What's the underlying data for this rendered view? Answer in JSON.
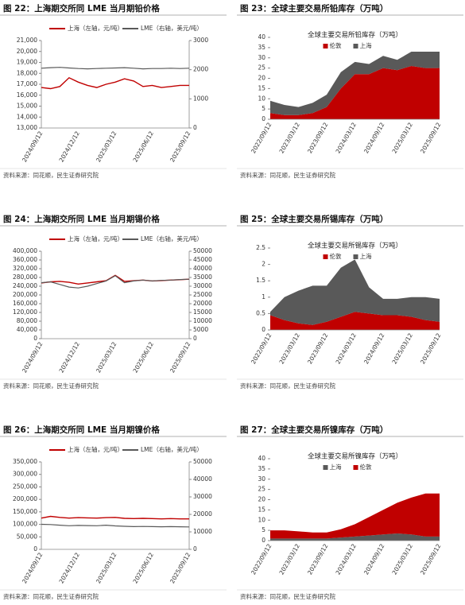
{
  "chart_data": [
    {
      "type": "line",
      "title": "图 22：上海期交所同 LME 当月期铅价格",
      "source": "资料来源：同花顺，民生证券研究院",
      "categories": [
        "2024/09/12",
        null,
        null,
        null,
        "2024/12/12",
        null,
        null,
        null,
        "2025/03/12",
        null,
        null,
        null,
        "2025/06/12",
        null,
        null,
        null,
        "2025/09/12"
      ],
      "series": [
        {
          "name": "上海（左轴，元/吨）",
          "color": "#c00000",
          "values": [
            16700,
            16600,
            16800,
            17600,
            17200,
            16900,
            16700,
            17000,
            17200,
            17500,
            17300,
            16800,
            16900,
            16700,
            16800,
            16900,
            16900
          ]
        },
        {
          "name": "LME（右轴，美元/吨）",
          "color": "#595959",
          "axis": "y2",
          "values": [
            2050,
            2070,
            2080,
            2060,
            2040,
            2030,
            2040,
            2050,
            2060,
            2070,
            2050,
            2030,
            2040,
            2040,
            2050,
            2040,
            2050
          ]
        }
      ],
      "ylim": [
        13000,
        21000
      ],
      "yticks": [
        {
          "value": 13000,
          "label": "13,000"
        },
        {
          "value": 14000,
          "label": "14,000"
        },
        {
          "value": 15000,
          "label": "15,000"
        },
        {
          "value": 16000,
          "label": "16,000"
        },
        {
          "value": 17000,
          "label": "17,000"
        },
        {
          "value": 18000,
          "label": "18,000"
        },
        {
          "value": 19000,
          "label": "19,000"
        },
        {
          "value": 20000,
          "label": "20,000"
        },
        {
          "value": 21000,
          "label": "21,000"
        }
      ],
      "y2lim": [
        0,
        3000
      ],
      "y2ticks": [
        0,
        1000,
        2000,
        3000
      ]
    },
    {
      "type": "area",
      "title": "图 23：全球主要交易所铅库存（万吨）",
      "subtitle": "全球主要交易所铅库存（万吨）",
      "source": "资料来源：同花顺，民生证券研究院",
      "categories": [
        "2022/09/12",
        null,
        "2023/03/12",
        null,
        "2023/09/12",
        null,
        "2024/03/12",
        null,
        "2024/09/12",
        null,
        "2025/03/12",
        null,
        "2025/09/12"
      ],
      "series": [
        {
          "name": "伦敦",
          "color": "#c00000",
          "values": [
            3,
            2,
            2,
            3,
            6,
            15,
            22,
            22,
            25,
            24,
            26,
            25,
            25
          ]
        },
        {
          "name": "上海",
          "color": "#595959",
          "values": [
            6,
            5,
            4,
            5,
            6,
            8,
            6,
            5,
            6,
            5,
            7,
            8,
            8
          ]
        }
      ],
      "ylim": [
        0,
        40
      ],
      "yticks": [
        0,
        5,
        10,
        15,
        20,
        25,
        30,
        35,
        40
      ]
    },
    {
      "type": "line",
      "title": "图 24：上海期交所同 LME 当月期锡价格",
      "source": "资料来源：同花顺，民生证券研究院",
      "categories": [
        "2024/09/12",
        null,
        null,
        null,
        "2024/12/12",
        null,
        null,
        null,
        "2025/03/12",
        null,
        null,
        null,
        "2025/06/12",
        null,
        null,
        null,
        "2025/09/12"
      ],
      "series": [
        {
          "name": "上海（左轴，元/吨）",
          "color": "#c00000",
          "values": [
            255000,
            260000,
            262000,
            258000,
            250000,
            255000,
            260000,
            265000,
            290000,
            262000,
            265000,
            268000,
            264000,
            266000,
            268000,
            270000,
            272000
          ]
        },
        {
          "name": "LME（右轴，美元/吨）",
          "color": "#595959",
          "axis": "y2",
          "values": [
            32000,
            32500,
            31000,
            29500,
            29000,
            30000,
            31500,
            33000,
            36000,
            32000,
            33000,
            33500,
            33000,
            33300,
            33500,
            33800,
            34000
          ]
        }
      ],
      "ylim": [
        0,
        400000
      ],
      "yticks": [
        0,
        {
          "value": 40000,
          "label": "40,000"
        },
        {
          "value": 80000,
          "label": "80,000"
        },
        {
          "value": 120000,
          "label": "120,000"
        },
        {
          "value": 160000,
          "label": "160,000"
        },
        {
          "value": 200000,
          "label": "200,000"
        },
        {
          "value": 240000,
          "label": "240,000"
        },
        {
          "value": 280000,
          "label": "280,000"
        },
        {
          "value": 320000,
          "label": "320,000"
        },
        {
          "value": 360000,
          "label": "360,000"
        },
        {
          "value": 400000,
          "label": "400,000"
        }
      ],
      "y2lim": [
        0,
        50000
      ],
      "y2ticks": [
        0,
        5000,
        10000,
        15000,
        20000,
        25000,
        30000,
        35000,
        40000,
        45000,
        50000
      ]
    },
    {
      "type": "area",
      "title": "图 25：全球主要交易所锡库存（万吨）",
      "subtitle": "全球主要交易所锡库存（万吨）",
      "source": "资料来源：同花顺，民生证券研究院",
      "categories": [
        "2022/09/12",
        null,
        "2023/03/12",
        null,
        "2023/09/12",
        null,
        "2024/03/12",
        null,
        "2024/09/12",
        null,
        "2025/03/12",
        null,
        "2025/09/12"
      ],
      "series": [
        {
          "name": "伦敦",
          "color": "#c00000",
          "values": [
            0.45,
            0.3,
            0.2,
            0.15,
            0.25,
            0.4,
            0.55,
            0.5,
            0.45,
            0.45,
            0.4,
            0.3,
            0.25
          ]
        },
        {
          "name": "上海",
          "color": "#595959",
          "values": [
            0.1,
            0.7,
            1.0,
            1.2,
            1.1,
            1.5,
            1.6,
            0.8,
            0.5,
            0.5,
            0.6,
            0.7,
            0.7
          ]
        }
      ],
      "ylim": [
        0,
        2.5
      ],
      "yticks": [
        0,
        0.5,
        1,
        1.5,
        2,
        2.5
      ]
    },
    {
      "type": "line",
      "title": "图 26：上海期交所同 LME 当月期镍价格",
      "source": "资料来源：同花顺，民生证券研究院",
      "categories": [
        "2024/09/12",
        null,
        null,
        null,
        "2024/12/12",
        null,
        null,
        null,
        "2025/03/12",
        null,
        null,
        null,
        "2025/06/12",
        null,
        null,
        null,
        "2025/09/12"
      ],
      "series": [
        {
          "name": "上海（左轴，元/吨）",
          "color": "#c00000",
          "values": [
            125000,
            132000,
            128000,
            125000,
            127000,
            126000,
            125000,
            127000,
            128000,
            124000,
            123000,
            124000,
            123000,
            122000,
            123000,
            122000,
            122000
          ]
        },
        {
          "name": "LME（右轴，美元/吨）",
          "color": "#595959",
          "axis": "y2",
          "values": [
            14300,
            14200,
            13800,
            13500,
            13700,
            13600,
            13500,
            13800,
            13400,
            13200,
            13000,
            13100,
            13000,
            12900,
            13000,
            12900,
            12800
          ]
        }
      ],
      "ylim": [
        0,
        350000
      ],
      "yticks": [
        0,
        {
          "value": 50000,
          "label": "50,000"
        },
        {
          "value": 100000,
          "label": "100,000"
        },
        {
          "value": 150000,
          "label": "150,000"
        },
        {
          "value": 200000,
          "label": "200,000"
        },
        {
          "value": 250000,
          "label": "250,000"
        },
        {
          "value": 300000,
          "label": "300,000"
        },
        {
          "value": 350000,
          "label": "350,000"
        }
      ],
      "y2lim": [
        0,
        50000
      ],
      "y2ticks": [
        0,
        10000,
        20000,
        30000,
        40000,
        50000
      ]
    },
    {
      "type": "area",
      "title": "图 27：全球主要交易所镍库存（万吨）",
      "subtitle": "全球主要交易所镍库存（万吨）",
      "source": "资料来源：同花顺，民生证券研究院",
      "categories": [
        "2022/09/12",
        null,
        "2023/03/12",
        null,
        "2023/09/12",
        null,
        "2024/03/12",
        null,
        "2024/09/12",
        null,
        "2025/03/12",
        null,
        "2025/09/12"
      ],
      "series": [
        {
          "name": "上海",
          "color": "#595959",
          "values": [
            1,
            1,
            1,
            1,
            1,
            1.5,
            2,
            2.5,
            3,
            3.5,
            3,
            2,
            2
          ]
        },
        {
          "name": "伦敦",
          "color": "#c00000",
          "values": [
            4,
            4,
            3.5,
            3,
            3,
            4,
            6,
            9,
            12,
            15,
            18,
            21,
            21
          ]
        }
      ],
      "ylim": [
        0,
        40
      ],
      "yticks": [
        0,
        5,
        10,
        15,
        20,
        25,
        30,
        35,
        40
      ]
    }
  ]
}
